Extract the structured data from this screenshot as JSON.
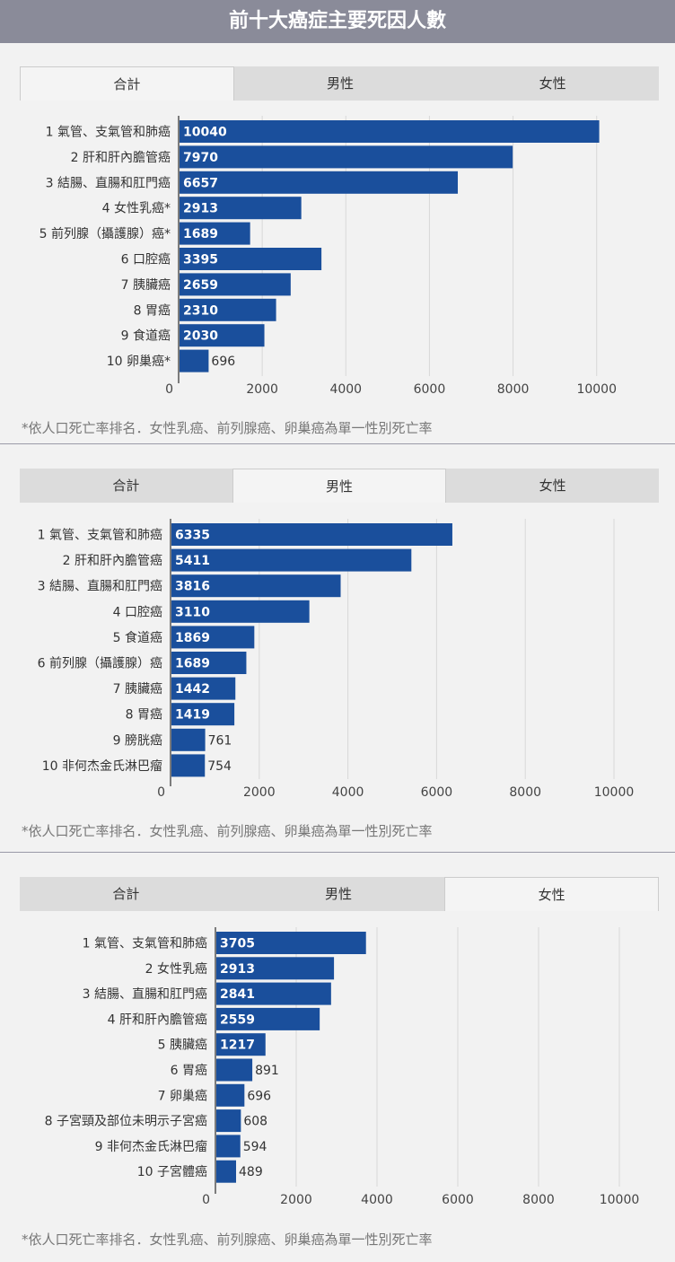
{
  "title": "前十大癌症主要死因人數",
  "tabs": [
    "合計",
    "男性",
    "女性"
  ],
  "footnote": "*依人口死亡率排名．女性乳癌、前列腺癌、卵巢癌為單一性別死亡率",
  "colors": {
    "bar": "#1a4f9c",
    "header": "#8a8b99",
    "grid": "#d8d8d8"
  },
  "chart_data": [
    {
      "type": "bar",
      "orientation": "horizontal",
      "active_tab": "合計",
      "categories": [
        "1 氣管、支氣管和肺癌",
        "2 肝和肝內膽管癌",
        "3 結腸、直腸和肛門癌",
        "4 女性乳癌*",
        "5 前列腺（攝護腺）癌*",
        "6 口腔癌",
        "7 胰臟癌",
        "8 胃癌",
        "9 食道癌",
        "10 卵巢癌*"
      ],
      "values": [
        10040,
        7970,
        6657,
        2913,
        1689,
        3395,
        2659,
        2310,
        2030,
        696
      ],
      "xticks": [
        0,
        2000,
        4000,
        6000,
        8000,
        10000
      ],
      "xlim": [
        0,
        10500
      ],
      "grid": true
    },
    {
      "type": "bar",
      "orientation": "horizontal",
      "active_tab": "男性",
      "categories": [
        "1 氣管、支氣管和肺癌",
        "2 肝和肝內膽管癌",
        "3 結腸、直腸和肛門癌",
        "4 口腔癌",
        "5 食道癌",
        "6 前列腺（攝護腺）癌",
        "7 胰臟癌",
        "8 胃癌",
        "9 膀胱癌",
        "10 非何杰金氏淋巴瘤"
      ],
      "values": [
        6335,
        5411,
        3816,
        3110,
        1869,
        1689,
        1442,
        1419,
        761,
        754
      ],
      "xticks": [
        0,
        2000,
        4000,
        6000,
        8000,
        10000
      ],
      "xlim": [
        0,
        10000
      ],
      "grid": true
    },
    {
      "type": "bar",
      "orientation": "horizontal",
      "active_tab": "女性",
      "categories": [
        "1 氣管、支氣管和肺癌",
        "2 女性乳癌",
        "3 結腸、直腸和肛門癌",
        "4 肝和肝內膽管癌",
        "5 胰臟癌",
        "6 胃癌",
        "7 卵巢癌",
        "8 子宮頸及部位未明示子宮癌",
        "9 非何杰金氏淋巴瘤",
        "10 子宮體癌"
      ],
      "values": [
        3705,
        2913,
        2841,
        2559,
        1217,
        891,
        696,
        608,
        594,
        489
      ],
      "xticks": [
        0,
        2000,
        4000,
        6000,
        8000,
        10000
      ],
      "xlim": [
        0,
        10000
      ],
      "grid": true
    }
  ]
}
